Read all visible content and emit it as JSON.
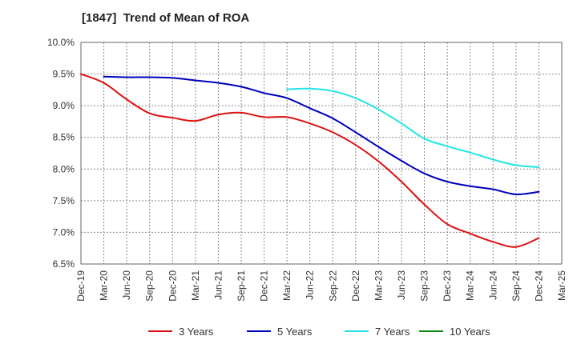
{
  "chart_data": {
    "type": "line",
    "title": "[1847]  Trend of Mean of ROA",
    "xlabel": "",
    "ylabel": "",
    "ylim": [
      6.5,
      10.0
    ],
    "yticks": [
      6.5,
      7.0,
      7.5,
      8.0,
      8.5,
      9.0,
      9.5,
      10.0
    ],
    "ytick_labels": [
      "6.5%",
      "7.0%",
      "7.5%",
      "8.0%",
      "8.5%",
      "9.0%",
      "9.5%",
      "10.0%"
    ],
    "categories": [
      "Dec-19",
      "Mar-20",
      "Jun-20",
      "Sep-20",
      "Dec-20",
      "Mar-21",
      "Jun-21",
      "Sep-21",
      "Dec-21",
      "Mar-22",
      "Jun-22",
      "Sep-22",
      "Dec-22",
      "Mar-23",
      "Jun-23",
      "Sep-23",
      "Dec-23",
      "Mar-24",
      "Jun-24",
      "Sep-24",
      "Dec-24",
      "Mar-25"
    ],
    "grid": true,
    "legend_position": "bottom",
    "series": [
      {
        "name": "3 Years",
        "color": "#dd1111",
        "values": [
          9.5,
          9.36,
          9.1,
          8.88,
          8.81,
          8.76,
          8.86,
          8.89,
          8.82,
          8.82,
          8.72,
          8.58,
          8.38,
          8.12,
          7.8,
          7.44,
          7.13,
          6.98,
          6.85,
          6.77,
          6.91,
          null
        ]
      },
      {
        "name": "5 Years",
        "color": "#0000bb",
        "values": [
          null,
          9.46,
          9.45,
          9.45,
          9.44,
          9.4,
          9.36,
          9.3,
          9.2,
          9.12,
          8.96,
          8.8,
          8.58,
          8.35,
          8.13,
          7.93,
          7.8,
          7.73,
          7.68,
          7.6,
          7.64,
          null
        ]
      },
      {
        "name": "7 Years",
        "color": "#22e5e5",
        "values": [
          null,
          null,
          null,
          null,
          null,
          null,
          null,
          null,
          null,
          9.26,
          9.27,
          9.23,
          9.12,
          8.94,
          8.72,
          8.48,
          8.36,
          8.26,
          8.15,
          8.06,
          8.03,
          null
        ]
      },
      {
        "name": "10 Years",
        "color": "#118811",
        "values": [
          null,
          null,
          null,
          null,
          null,
          null,
          null,
          null,
          null,
          null,
          null,
          null,
          null,
          null,
          null,
          null,
          null,
          null,
          null,
          null,
          null,
          null
        ]
      }
    ]
  }
}
